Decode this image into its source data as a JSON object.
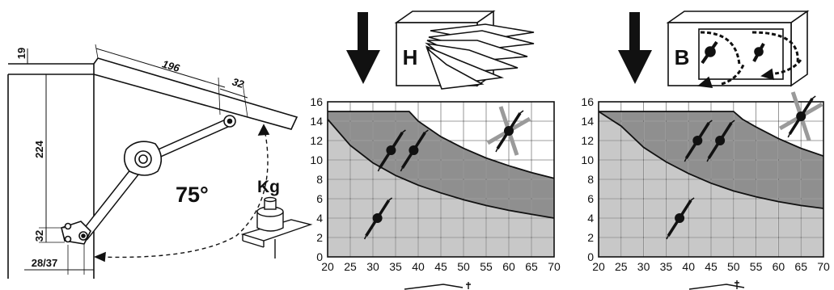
{
  "dimensions": {
    "top_offset": "19",
    "arm_length": "196",
    "arm_end": "32",
    "height": "224",
    "bottom_offset": "32",
    "side_offset": "28/37"
  },
  "angle_label": "75°",
  "weight_label": "Kg",
  "panels": [
    {
      "letter": "H",
      "chart_data": {
        "type": "area",
        "x_ticks": [
          20,
          25,
          30,
          35,
          40,
          45,
          50,
          55,
          60,
          65,
          70
        ],
        "y_ticks": [
          0,
          2,
          4,
          6,
          8,
          10,
          12,
          14,
          16
        ],
        "xlim": [
          20,
          70
        ],
        "ylim": [
          0,
          16
        ],
        "grid": true,
        "upper_curve": {
          "x": [
            20,
            25,
            30,
            35,
            38,
            40,
            45,
            50,
            55,
            60,
            65,
            70
          ],
          "y": [
            15,
            15,
            15,
            15,
            15,
            14,
            12.4,
            11.2,
            10.2,
            9.4,
            8.7,
            8.1
          ]
        },
        "lower_curve": {
          "x": [
            20,
            25,
            30,
            35,
            40,
            45,
            50,
            55,
            60,
            65,
            70
          ],
          "y": [
            14.2,
            11.5,
            9.7,
            8.4,
            7.4,
            6.6,
            5.9,
            5.3,
            4.8,
            4.4,
            4.0
          ]
        },
        "markers": [
          {
            "x": 34,
            "y": 11,
            "kind": "active"
          },
          {
            "x": 39,
            "y": 11,
            "kind": "active"
          },
          {
            "x": 31,
            "y": 4,
            "kind": "active"
          },
          {
            "x": 60,
            "y": 13,
            "kind": "crossed"
          }
        ]
      }
    },
    {
      "letter": "B",
      "chart_data": {
        "type": "area",
        "x_ticks": [
          20,
          25,
          30,
          35,
          40,
          45,
          50,
          55,
          60,
          65,
          70
        ],
        "y_ticks": [
          0,
          2,
          4,
          6,
          8,
          10,
          12,
          14,
          16
        ],
        "xlim": [
          20,
          70
        ],
        "ylim": [
          0,
          16
        ],
        "grid": true,
        "upper_curve": {
          "x": [
            20,
            25,
            30,
            35,
            40,
            45,
            50,
            52,
            55,
            60,
            65,
            70
          ],
          "y": [
            15,
            15,
            15,
            15,
            15,
            15,
            15,
            14.2,
            13.4,
            12.2,
            11.2,
            10.4
          ]
        },
        "lower_curve": {
          "x": [
            20,
            25,
            30,
            35,
            40,
            45,
            50,
            55,
            60,
            65,
            70
          ],
          "y": [
            15,
            13.5,
            11.3,
            9.8,
            8.6,
            7.6,
            6.8,
            6.2,
            5.7,
            5.3,
            5.0
          ]
        },
        "markers": [
          {
            "x": 42,
            "y": 12,
            "kind": "active"
          },
          {
            "x": 47,
            "y": 12,
            "kind": "active"
          },
          {
            "x": 38,
            "y": 4,
            "kind": "active"
          },
          {
            "x": 65,
            "y": 14.5,
            "kind": "crossed"
          }
        ]
      }
    }
  ],
  "colors": {
    "light": "#c8c8c8",
    "dark": "#8f8f8f",
    "grid": "#ffffff",
    "ink": "#111111",
    "faded": "#9a9a9a"
  }
}
